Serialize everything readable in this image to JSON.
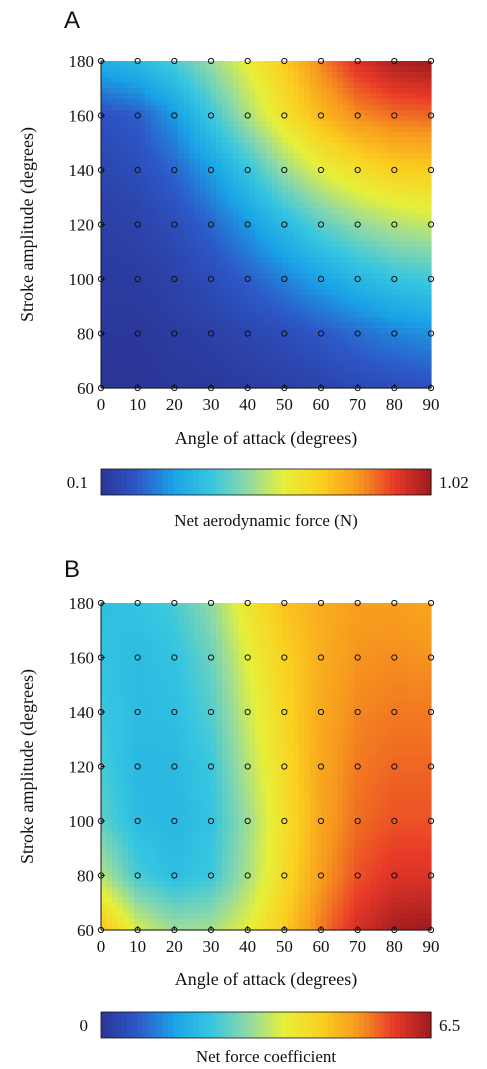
{
  "chart_data": [
    {
      "type": "heatmap",
      "panel_label": "A",
      "xlabel": "Angle of attack (degrees)",
      "ylabel": "Stroke amplitude (degrees)",
      "x_ticks": [
        "0",
        "10",
        "20",
        "30",
        "40",
        "50",
        "60",
        "70",
        "80",
        "90"
      ],
      "y_ticks": [
        "60",
        "80",
        "100",
        "120",
        "140",
        "160",
        "180"
      ],
      "xlim": [
        0,
        90
      ],
      "ylim": [
        60,
        180
      ],
      "x": [
        0,
        10,
        20,
        30,
        40,
        50,
        60,
        70,
        80,
        90
      ],
      "y": [
        60,
        80,
        100,
        120,
        140,
        160,
        180
      ],
      "z": [
        [
          0.1,
          0.1,
          0.11,
          0.11,
          0.12,
          0.13,
          0.14,
          0.16,
          0.17,
          0.18
        ],
        [
          0.11,
          0.11,
          0.12,
          0.13,
          0.15,
          0.17,
          0.2,
          0.23,
          0.26,
          0.28
        ],
        [
          0.12,
          0.12,
          0.14,
          0.17,
          0.21,
          0.26,
          0.31,
          0.36,
          0.4,
          0.42
        ],
        [
          0.13,
          0.14,
          0.17,
          0.22,
          0.29,
          0.37,
          0.45,
          0.51,
          0.55,
          0.57
        ],
        [
          0.15,
          0.17,
          0.22,
          0.3,
          0.4,
          0.52,
          0.61,
          0.67,
          0.71,
          0.72
        ],
        [
          0.18,
          0.21,
          0.29,
          0.41,
          0.54,
          0.66,
          0.76,
          0.83,
          0.86,
          0.87
        ],
        [
          0.34,
          0.37,
          0.43,
          0.52,
          0.62,
          0.72,
          0.84,
          0.94,
          1.0,
          1.02
        ]
      ],
      "colorbar": {
        "min": 0.1,
        "max": 1.02,
        "min_label": "0.1",
        "max_label": "1.02",
        "label": "Net aerodynamic force (N)"
      },
      "colormap": [
        "#2b3596",
        "#2d58c8",
        "#1aa3e6",
        "#36c6e0",
        "#8fd9a6",
        "#e6f03a",
        "#fbd020",
        "#f79a1e",
        "#e83a28",
        "#9e1a1e"
      ],
      "markers": "open circles at every sampled grid point",
      "grid": false
    },
    {
      "type": "heatmap",
      "panel_label": "B",
      "xlabel": "Angle of attack (degrees)",
      "ylabel": "Stroke amplitude (degrees)",
      "x_ticks": [
        "0",
        "10",
        "20",
        "30",
        "40",
        "50",
        "60",
        "70",
        "80",
        "90"
      ],
      "y_ticks": [
        "60",
        "80",
        "100",
        "120",
        "140",
        "160",
        "180"
      ],
      "xlim": [
        0,
        90
      ],
      "ylim": [
        60,
        180
      ],
      "x": [
        0,
        10,
        20,
        30,
        40,
        50,
        60,
        70,
        80,
        90
      ],
      "y": [
        60,
        80,
        100,
        120,
        140,
        160,
        180
      ],
      "z": [
        [
          4.6,
          3.5,
          3.0,
          3.1,
          3.6,
          4.4,
          5.3,
          6.0,
          6.4,
          6.5
        ],
        [
          3.2,
          2.3,
          2.0,
          2.2,
          3.1,
          4.1,
          5.0,
          5.6,
          5.9,
          5.9
        ],
        [
          2.5,
          1.95,
          1.85,
          2.1,
          3.0,
          4.0,
          4.9,
          5.4,
          5.6,
          5.6
        ],
        [
          2.3,
          1.9,
          1.9,
          2.2,
          3.2,
          4.1,
          4.9,
          5.3,
          5.45,
          5.45
        ],
        [
          2.2,
          1.95,
          2.0,
          2.4,
          3.4,
          4.2,
          4.85,
          5.2,
          5.3,
          5.3
        ],
        [
          2.1,
          1.95,
          2.1,
          2.6,
          3.6,
          4.3,
          4.8,
          5.1,
          5.15,
          5.1
        ],
        [
          2.0,
          2.1,
          2.3,
          2.9,
          3.9,
          4.5,
          4.8,
          5.0,
          5.0,
          4.9
        ]
      ],
      "colorbar": {
        "min": 0,
        "max": 6.5,
        "min_label": "0",
        "max_label": "6.5",
        "label": "Net force coefficient"
      },
      "colormap": [
        "#2b3596",
        "#2d58c8",
        "#1aa3e6",
        "#36c6e0",
        "#8fd9a6",
        "#e6f03a",
        "#fbd020",
        "#f79a1e",
        "#e83a28",
        "#9e1a1e"
      ],
      "markers": "open circles at every sampled grid point",
      "grid": false
    }
  ]
}
